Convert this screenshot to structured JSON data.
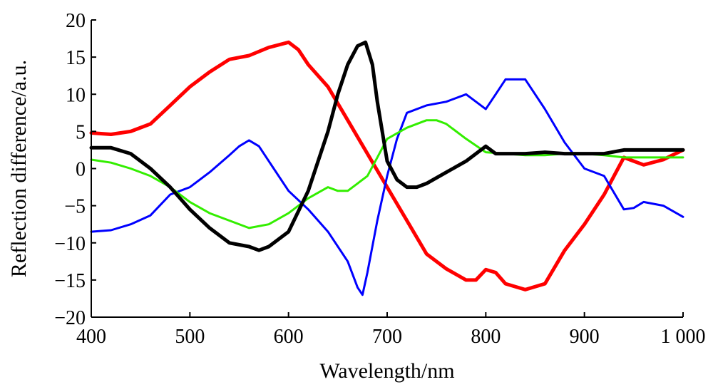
{
  "chart_data": {
    "type": "line",
    "xlabel": "Wavelength/nm",
    "ylabel": "Reflection difference/a.u.",
    "xlim": [
      400,
      1000
    ],
    "ylim": [
      -20,
      20
    ],
    "x_ticks": [
      400,
      500,
      600,
      700,
      800,
      900,
      1000
    ],
    "x_tick_labels": [
      "400",
      "500",
      "600",
      "700",
      "800",
      "900",
      "1 000"
    ],
    "y_ticks": [
      20,
      15,
      10,
      5,
      0,
      -5,
      -10,
      -15,
      -20
    ],
    "y_tick_labels": [
      "20",
      "15",
      "10",
      "5",
      "0",
      "−5",
      "−10",
      "−15",
      "−20"
    ],
    "grid": false,
    "legend": "none",
    "series": [
      {
        "color": "#ff0000",
        "x": [
          400,
          420,
          440,
          460,
          480,
          500,
          520,
          540,
          560,
          580,
          600,
          610,
          620,
          640,
          660,
          680,
          700,
          720,
          740,
          760,
          780,
          790,
          800,
          810,
          820,
          840,
          860,
          880,
          900,
          920,
          940,
          950,
          960,
          980,
          1000
        ],
        "values": [
          4.8,
          4.6,
          5.0,
          6.0,
          8.5,
          11.0,
          13.0,
          14.7,
          15.2,
          16.3,
          17.0,
          16.0,
          14.0,
          11.0,
          6.5,
          2.0,
          -2.5,
          -7.0,
          -11.5,
          -13.5,
          -15.0,
          -15.0,
          -13.6,
          -14.0,
          -15.5,
          -16.3,
          -15.5,
          -11.0,
          -7.5,
          -3.5,
          1.5,
          1.0,
          0.5,
          1.2,
          2.5
        ]
      },
      {
        "color": "#0000ff",
        "x": [
          400,
          420,
          440,
          460,
          480,
          500,
          520,
          540,
          550,
          560,
          570,
          580,
          600,
          620,
          640,
          660,
          670,
          675,
          680,
          690,
          700,
          710,
          720,
          740,
          760,
          780,
          790,
          800,
          810,
          820,
          840,
          860,
          880,
          900,
          920,
          940,
          950,
          960,
          980,
          1000
        ],
        "values": [
          -8.5,
          -8.3,
          -7.5,
          -6.3,
          -3.5,
          -2.5,
          -0.5,
          1.8,
          3.0,
          3.8,
          3.0,
          1.0,
          -3.0,
          -5.5,
          -8.5,
          -12.5,
          -16.0,
          -17.0,
          -14.0,
          -7.0,
          -1.0,
          4.0,
          7.5,
          8.5,
          9.0,
          10.0,
          9.0,
          8.0,
          10.0,
          12.0,
          12.0,
          8.0,
          3.5,
          0.0,
          -1.0,
          -5.5,
          -5.3,
          -4.5,
          -5.0,
          -6.5
        ]
      },
      {
        "color": "#33ee00",
        "x": [
          400,
          420,
          440,
          460,
          480,
          500,
          520,
          540,
          560,
          580,
          600,
          620,
          640,
          650,
          660,
          670,
          680,
          690,
          700,
          720,
          740,
          750,
          760,
          780,
          800,
          820,
          840,
          860,
          880,
          900,
          920,
          940,
          960,
          980,
          1000
        ],
        "values": [
          1.2,
          0.8,
          0.0,
          -1.0,
          -2.5,
          -4.5,
          -6.0,
          -7.0,
          -8.0,
          -7.5,
          -6.0,
          -4.0,
          -2.5,
          -3.0,
          -3.0,
          -2.0,
          -1.0,
          1.5,
          4.0,
          5.5,
          6.5,
          6.5,
          6.0,
          4.0,
          2.2,
          2.0,
          1.8,
          1.8,
          2.0,
          2.0,
          1.8,
          1.5,
          1.5,
          1.5,
          1.5
        ]
      },
      {
        "color": "#000000",
        "x": [
          400,
          420,
          440,
          460,
          480,
          500,
          520,
          540,
          560,
          570,
          580,
          600,
          620,
          640,
          650,
          660,
          670,
          678,
          685,
          690,
          700,
          710,
          720,
          730,
          740,
          760,
          780,
          800,
          810,
          820,
          840,
          860,
          880,
          900,
          920,
          940,
          960,
          980,
          1000
        ],
        "values": [
          2.8,
          2.8,
          2.0,
          0.0,
          -2.5,
          -5.5,
          -8.0,
          -10.0,
          -10.5,
          -11.0,
          -10.5,
          -8.5,
          -3.0,
          5.0,
          10.0,
          14.0,
          16.5,
          17.0,
          14.0,
          9.0,
          1.0,
          -1.5,
          -2.5,
          -2.5,
          -2.0,
          -0.5,
          1.0,
          3.0,
          2.0,
          2.0,
          2.0,
          2.2,
          2.0,
          2.0,
          2.0,
          2.5,
          2.5,
          2.5,
          2.5
        ]
      }
    ]
  }
}
